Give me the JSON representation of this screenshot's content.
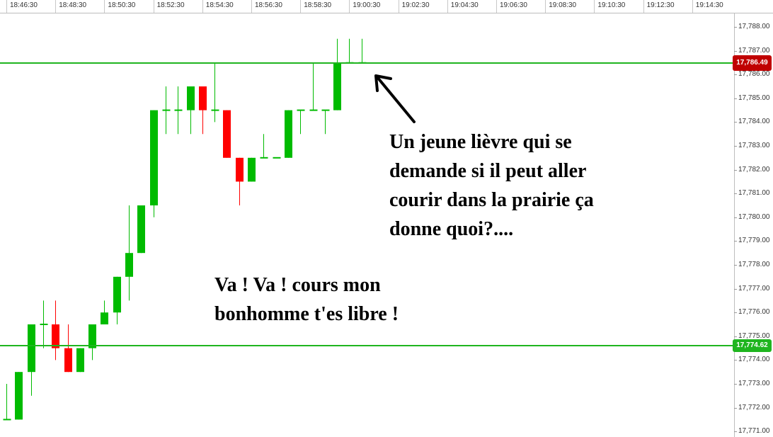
{
  "chart_data": {
    "type": "candlestick",
    "x_tick_labels": [
      "18:46:30",
      "18:48:30",
      "18:50:30",
      "18:52:30",
      "18:54:30",
      "18:56:30",
      "18:58:30",
      "19:00:30",
      "19:02:30",
      "19:04:30",
      "19:06:30",
      "19:08:30",
      "19:10:30",
      "19:12:30",
      "19:14:30"
    ],
    "y_tick_labels": [
      "17,788.00",
      "17,787.00",
      "17,786.00",
      "17,785.00",
      "17,784.00",
      "17,783.00",
      "17,782.00",
      "17,781.00",
      "17,780.00",
      "17,779.00",
      "17,778.00",
      "17,777.00",
      "17,776.00",
      "17,775.00",
      "17,774.00",
      "17,773.00",
      "17,772.00",
      "17,771.00"
    ],
    "ylim": [
      17771,
      17788
    ],
    "bar_interval_seconds": 30,
    "candles": [
      {
        "t": "18:46:30",
        "o": 17771.5,
        "h": 17773.0,
        "l": 17771.5,
        "c": 17771.5
      },
      {
        "t": "18:47:00",
        "o": 17771.5,
        "h": 17773.5,
        "l": 17771.5,
        "c": 17773.5
      },
      {
        "t": "18:47:30",
        "o": 17773.5,
        "h": 17775.5,
        "l": 17772.5,
        "c": 17775.5
      },
      {
        "t": "18:48:00",
        "o": 17775.5,
        "h": 17776.5,
        "l": 17774.5,
        "c": 17775.5
      },
      {
        "t": "18:48:30",
        "o": 17775.5,
        "h": 17776.5,
        "l": 17774.0,
        "c": 17774.5
      },
      {
        "t": "18:49:00",
        "o": 17774.5,
        "h": 17775.5,
        "l": 17773.5,
        "c": 17773.5
      },
      {
        "t": "18:49:30",
        "o": 17773.5,
        "h": 17774.5,
        "l": 17773.5,
        "c": 17774.5
      },
      {
        "t": "18:50:00",
        "o": 17774.5,
        "h": 17775.5,
        "l": 17774.0,
        "c": 17775.5
      },
      {
        "t": "18:50:30",
        "o": 17775.5,
        "h": 17776.5,
        "l": 17775.5,
        "c": 17776.0
      },
      {
        "t": "18:51:00",
        "o": 17776.0,
        "h": 17777.5,
        "l": 17775.5,
        "c": 17777.5
      },
      {
        "t": "18:51:30",
        "o": 17777.5,
        "h": 17780.5,
        "l": 17776.5,
        "c": 17778.5
      },
      {
        "t": "18:52:00",
        "o": 17778.5,
        "h": 17780.5,
        "l": 17778.5,
        "c": 17780.5
      },
      {
        "t": "18:52:30",
        "o": 17780.5,
        "h": 17784.5,
        "l": 17780.0,
        "c": 17784.5
      },
      {
        "t": "18:53:00",
        "o": 17784.5,
        "h": 17785.5,
        "l": 17783.5,
        "c": 17784.5
      },
      {
        "t": "18:53:30",
        "o": 17784.5,
        "h": 17785.5,
        "l": 17783.5,
        "c": 17784.5
      },
      {
        "t": "18:54:00",
        "o": 17784.5,
        "h": 17785.5,
        "l": 17783.5,
        "c": 17785.5
      },
      {
        "t": "18:54:30",
        "o": 17785.5,
        "h": 17785.5,
        "l": 17783.5,
        "c": 17784.5
      },
      {
        "t": "18:55:00",
        "o": 17784.5,
        "h": 17786.5,
        "l": 17784.0,
        "c": 17784.5
      },
      {
        "t": "18:55:30",
        "o": 17784.5,
        "h": 17784.5,
        "l": 17782.5,
        "c": 17782.5
      },
      {
        "t": "18:56:00",
        "o": 17782.5,
        "h": 17782.5,
        "l": 17780.5,
        "c": 17781.5
      },
      {
        "t": "18:56:30",
        "o": 17781.5,
        "h": 17782.5,
        "l": 17781.5,
        "c": 17782.5
      },
      {
        "t": "18:57:00",
        "o": 17782.5,
        "h": 17783.5,
        "l": 17782.5,
        "c": 17782.5
      },
      {
        "t": "18:57:30",
        "o": 17782.5,
        "h": 17782.5,
        "l": 17782.5,
        "c": 17782.5
      },
      {
        "t": "18:58:00",
        "o": 17782.5,
        "h": 17784.5,
        "l": 17782.5,
        "c": 17784.5
      },
      {
        "t": "18:58:30",
        "o": 17784.5,
        "h": 17784.5,
        "l": 17783.5,
        "c": 17784.5
      },
      {
        "t": "18:59:00",
        "o": 17784.5,
        "h": 17786.5,
        "l": 17784.5,
        "c": 17784.5
      },
      {
        "t": "18:59:30",
        "o": 17784.5,
        "h": 17784.5,
        "l": 17783.5,
        "c": 17784.5
      },
      {
        "t": "19:00:00",
        "o": 17784.5,
        "h": 17787.5,
        "l": 17784.5,
        "c": 17786.49
      },
      {
        "t": "19:00:30",
        "o": 17786.49,
        "h": 17787.5,
        "l": 17786.49,
        "c": 17786.49
      },
      {
        "t": "19:01:00",
        "o": 17786.49,
        "h": 17787.5,
        "l": 17786.49,
        "c": 17786.49
      }
    ],
    "horizontal_lines": [
      {
        "value": 17786.49,
        "label": "17,786.49",
        "label_color": "#c00000"
      },
      {
        "value": 17774.62,
        "label": "17,774.62",
        "label_color": "#1fb51f"
      }
    ],
    "colors": {
      "up": "#00bb00",
      "down": "#ff0000",
      "line": "#1fb51f"
    },
    "annotations": [
      {
        "text": "Un jeune lièvre qui se\ndemande si il peut aller\ncourir dans la prairie ça\ndonne quoi?...."
      },
      {
        "text": "Va ! Va ! cours mon\nbonhomme t'es libre !"
      }
    ]
  }
}
